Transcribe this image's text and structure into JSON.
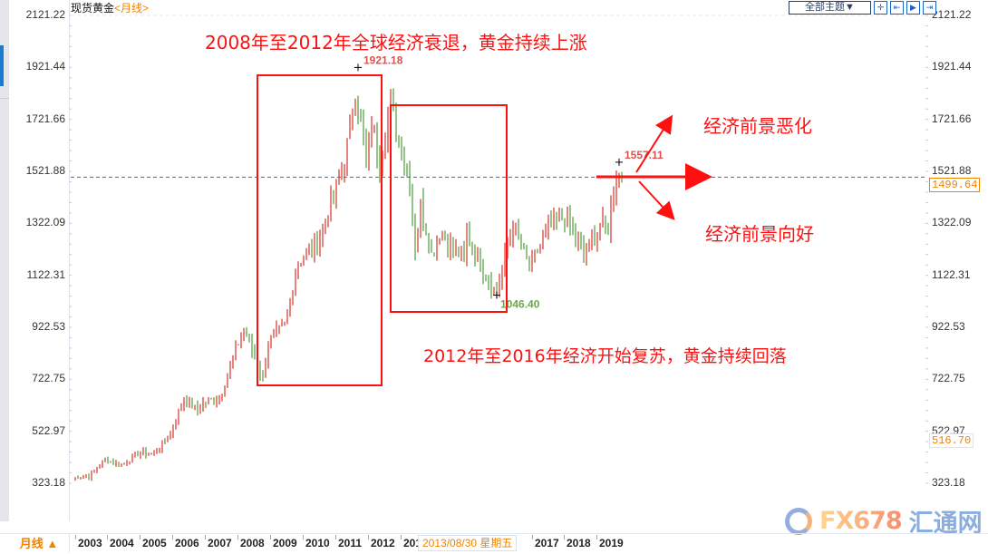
{
  "header": {
    "instrument": "现货黄金",
    "period_tag": "<月线>",
    "theme_select": "全部主题▼",
    "tool_icons": [
      "crosshair-icon",
      "fit-range-icon",
      "step-forward-icon",
      "jump-latest-icon"
    ]
  },
  "footer": {
    "period_button": "月线 ▲",
    "cursor_date": "2013/08/30 星期五",
    "watermark": {
      "brand": "FX678",
      "brand_cn": "汇通网"
    }
  },
  "price_tags": {
    "current": "1499.64",
    "lowest_visible": "516.70"
  },
  "annotations": {
    "rise_period": "2008年至2012年全球经济衰退，黄金持续上涨",
    "fall_period": "2012年至2016年经济开始复苏，黄金持续回落",
    "outlook_bad": "经济前景恶化",
    "outlook_good": "经济前景向好"
  },
  "colors": {
    "up": "#d9413b",
    "down": "#5aa54a",
    "annotation": "#ff1010",
    "current_line": "#1a7bd0",
    "accent": "#f08300"
  },
  "chart_data": {
    "type": "ohlc",
    "title": "现货黄金 <月线>",
    "xlabel": "",
    "ylabel": "",
    "y_ticks": [
      2121.22,
      1921.44,
      1721.66,
      1521.88,
      1322.09,
      1122.31,
      922.53,
      722.75,
      522.97,
      323.18
    ],
    "ylim": [
      323.18,
      2121.22
    ],
    "x_ticks": [
      "2003",
      "2004",
      "2005",
      "2006",
      "2007",
      "2008",
      "2009",
      "2010",
      "2011",
      "2012",
      "2013",
      "2017",
      "2018",
      "2019"
    ],
    "grid": false,
    "current_price_line": 1499.64,
    "marked_points": [
      {
        "label": "1921.18",
        "date": "2011-09",
        "value": 1921.18,
        "type": "high"
      },
      {
        "label": "1046.40",
        "date": "2015-12",
        "value": 1046.4,
        "type": "low"
      },
      {
        "label": "1557.11",
        "date": "2019-09",
        "value": 1557.11,
        "type": "high"
      }
    ],
    "monthly_close_waypoints": [
      {
        "date": "2002-12",
        "value": 345
      },
      {
        "date": "2003-06",
        "value": 350
      },
      {
        "date": "2003-12",
        "value": 415
      },
      {
        "date": "2004-06",
        "value": 395
      },
      {
        "date": "2004-12",
        "value": 438
      },
      {
        "date": "2005-06",
        "value": 436
      },
      {
        "date": "2005-12",
        "value": 513
      },
      {
        "date": "2006-05",
        "value": 650
      },
      {
        "date": "2006-10",
        "value": 600
      },
      {
        "date": "2006-12",
        "value": 632
      },
      {
        "date": "2007-06",
        "value": 650
      },
      {
        "date": "2007-12",
        "value": 834
      },
      {
        "date": "2008-03",
        "value": 920
      },
      {
        "date": "2008-10",
        "value": 720
      },
      {
        "date": "2008-12",
        "value": 870
      },
      {
        "date": "2009-06",
        "value": 925
      },
      {
        "date": "2009-11",
        "value": 1170
      },
      {
        "date": "2010-06",
        "value": 1245
      },
      {
        "date": "2010-12",
        "value": 1420
      },
      {
        "date": "2011-04",
        "value": 1555
      },
      {
        "date": "2011-08",
        "value": 1825
      },
      {
        "date": "2011-12",
        "value": 1565
      },
      {
        "date": "2012-02",
        "value": 1710
      },
      {
        "date": "2012-05",
        "value": 1560
      },
      {
        "date": "2012-09",
        "value": 1772
      },
      {
        "date": "2013-04",
        "value": 1470
      },
      {
        "date": "2013-06",
        "value": 1232
      },
      {
        "date": "2013-08",
        "value": 1395
      },
      {
        "date": "2013-12",
        "value": 1202
      },
      {
        "date": "2014-03",
        "value": 1285
      },
      {
        "date": "2014-12",
        "value": 1185
      },
      {
        "date": "2015-01",
        "value": 1280
      },
      {
        "date": "2015-11",
        "value": 1065
      },
      {
        "date": "2015-12",
        "value": 1061
      },
      {
        "date": "2016-06",
        "value": 1322
      },
      {
        "date": "2016-12",
        "value": 1151
      },
      {
        "date": "2017-08",
        "value": 1322
      },
      {
        "date": "2018-01",
        "value": 1345
      },
      {
        "date": "2018-08",
        "value": 1201
      },
      {
        "date": "2019-02",
        "value": 1313
      },
      {
        "date": "2019-05",
        "value": 1305
      },
      {
        "date": "2019-08",
        "value": 1520
      },
      {
        "date": "2019-10",
        "value": 1499
      }
    ]
  }
}
